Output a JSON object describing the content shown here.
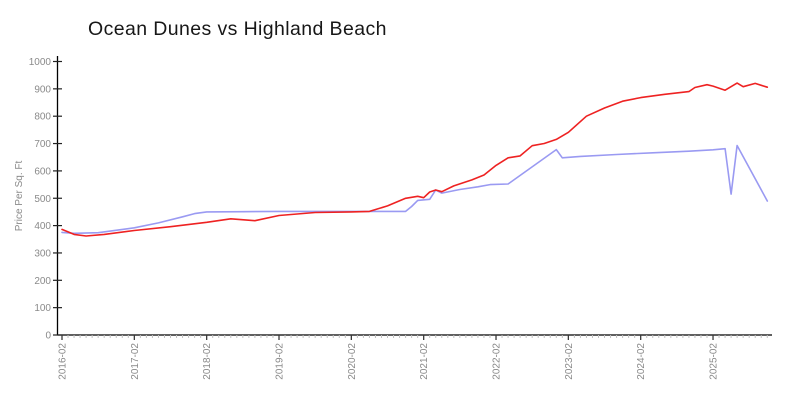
{
  "page": {
    "background": "#ffffff"
  },
  "chart_data": {
    "type": "line",
    "title": "Ocean Dunes vs Highland Beach",
    "xlabel": "",
    "ylabel": "Price Per Sq. Ft",
    "legend_position": "none",
    "grid": false,
    "ylim": [
      0,
      1000
    ],
    "y_ticks": [
      0,
      100,
      200,
      300,
      400,
      500,
      600,
      700,
      800,
      900,
      1000
    ],
    "x_tick_labels": [
      "2016-02",
      "2017-02",
      "2018-02",
      "2019-02",
      "2020-02",
      "2021-02",
      "2022-02",
      "2023-02",
      "2024-02",
      "2025-02"
    ],
    "x_minor_tick_unit": "month",
    "x_range": [
      "2016-02",
      "2025-11"
    ],
    "axis_color": "#000000",
    "tick_label_color": "#8a8a8a",
    "series": [
      {
        "name": "Highland Beach",
        "color": "#9a9af2",
        "points": [
          [
            "2016-02",
            375
          ],
          [
            "2016-04",
            372
          ],
          [
            "2016-08",
            374
          ],
          [
            "2017-02",
            392
          ],
          [
            "2017-06",
            410
          ],
          [
            "2017-10",
            432
          ],
          [
            "2017-12",
            444
          ],
          [
            "2018-02",
            450
          ],
          [
            "2018-08",
            451
          ],
          [
            "2019-02",
            452
          ],
          [
            "2019-08",
            452
          ],
          [
            "2020-02",
            452
          ],
          [
            "2020-06",
            452
          ],
          [
            "2020-11",
            452
          ],
          [
            "2020-12",
            470
          ],
          [
            "2021-01",
            492
          ],
          [
            "2021-03",
            496
          ],
          [
            "2021-04",
            530
          ],
          [
            "2021-05",
            519
          ],
          [
            "2021-08",
            532
          ],
          [
            "2021-11",
            542
          ],
          [
            "2022-01",
            550
          ],
          [
            "2022-04",
            552
          ],
          [
            "2022-12",
            678
          ],
          [
            "2023-01",
            648
          ],
          [
            "2023-04",
            653
          ],
          [
            "2023-10",
            660
          ],
          [
            "2024-04",
            666
          ],
          [
            "2024-10",
            672
          ],
          [
            "2025-02",
            677
          ],
          [
            "2025-04",
            681
          ],
          [
            "2025-05",
            515
          ],
          [
            "2025-06",
            693
          ],
          [
            "2025-11",
            490
          ]
        ]
      },
      {
        "name": "Ocean Dunes",
        "color": "#ee2222",
        "points": [
          [
            "2016-02",
            386
          ],
          [
            "2016-04",
            368
          ],
          [
            "2016-06",
            362
          ],
          [
            "2016-09",
            368
          ],
          [
            "2017-02",
            382
          ],
          [
            "2017-08",
            396
          ],
          [
            "2018-02",
            412
          ],
          [
            "2018-06",
            425
          ],
          [
            "2018-10",
            418
          ],
          [
            "2019-02",
            437
          ],
          [
            "2019-08",
            448
          ],
          [
            "2020-02",
            450
          ],
          [
            "2020-05",
            452
          ],
          [
            "2020-08",
            472
          ],
          [
            "2020-11",
            500
          ],
          [
            "2021-01",
            507
          ],
          [
            "2021-02",
            502
          ],
          [
            "2021-03",
            523
          ],
          [
            "2021-04",
            530
          ],
          [
            "2021-05",
            524
          ],
          [
            "2021-07",
            545
          ],
          [
            "2021-10",
            567
          ],
          [
            "2021-12",
            585
          ],
          [
            "2022-02",
            620
          ],
          [
            "2022-04",
            648
          ],
          [
            "2022-06",
            655
          ],
          [
            "2022-08",
            692
          ],
          [
            "2022-10",
            700
          ],
          [
            "2022-12",
            715
          ],
          [
            "2023-02",
            741
          ],
          [
            "2023-05",
            800
          ],
          [
            "2023-08",
            830
          ],
          [
            "2023-11",
            855
          ],
          [
            "2024-02",
            868
          ],
          [
            "2024-06",
            880
          ],
          [
            "2024-10",
            890
          ],
          [
            "2024-11",
            905
          ],
          [
            "2025-01",
            915
          ],
          [
            "2025-02",
            910
          ],
          [
            "2025-04",
            895
          ],
          [
            "2025-06",
            921
          ],
          [
            "2025-07",
            908
          ],
          [
            "2025-09",
            920
          ],
          [
            "2025-11",
            906
          ]
        ]
      }
    ]
  }
}
